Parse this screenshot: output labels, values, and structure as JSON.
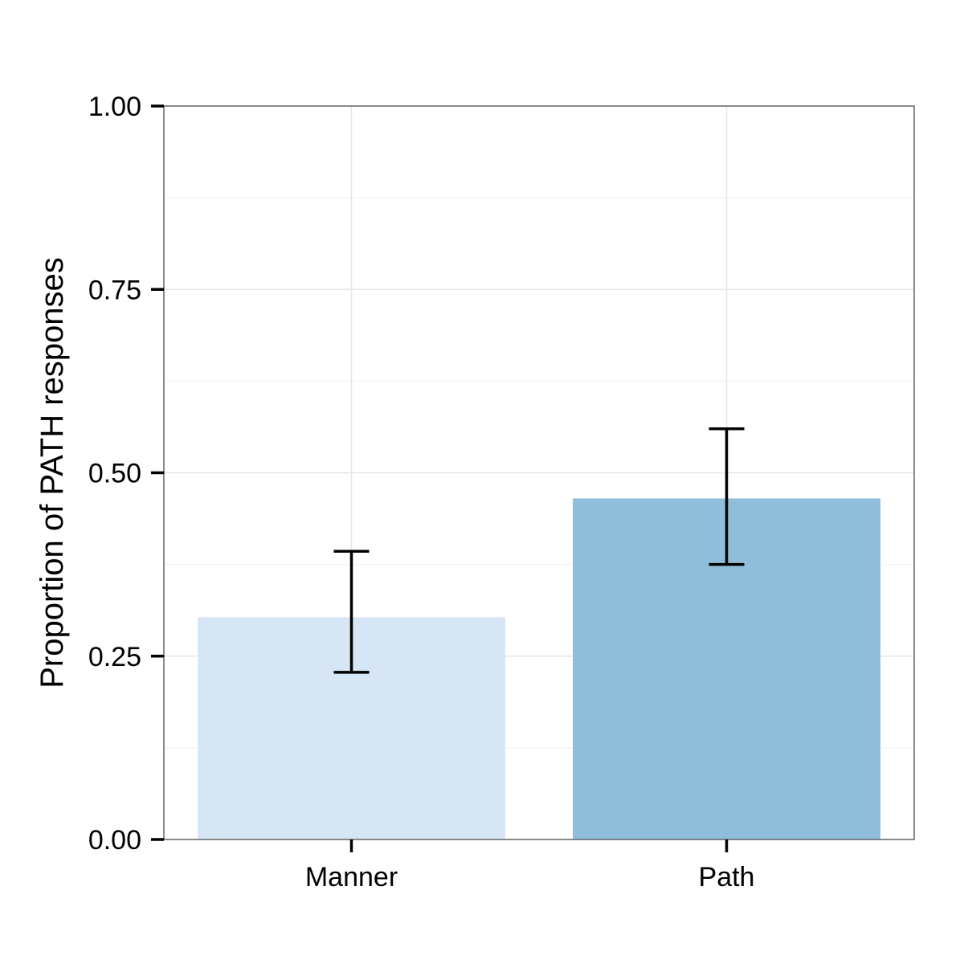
{
  "chart_data": {
    "type": "bar",
    "title": "",
    "xlabel": "",
    "ylabel": "Proportion of PATH responses",
    "categories": [
      "Manner",
      "Path"
    ],
    "values": [
      0.303,
      0.465
    ],
    "error_low": [
      0.228,
      0.375
    ],
    "error_high": [
      0.393,
      0.56
    ],
    "colors": [
      "#d6e6f4",
      "#8fbdda"
    ],
    "ylim": [
      0,
      1
    ],
    "y_ticks": [
      0,
      0.25,
      0.5,
      0.75,
      1
    ],
    "y_tick_labels": [
      "0.00",
      "0.25",
      "0.50",
      "0.75",
      "1.00"
    ],
    "grid": true,
    "legend": "none"
  }
}
